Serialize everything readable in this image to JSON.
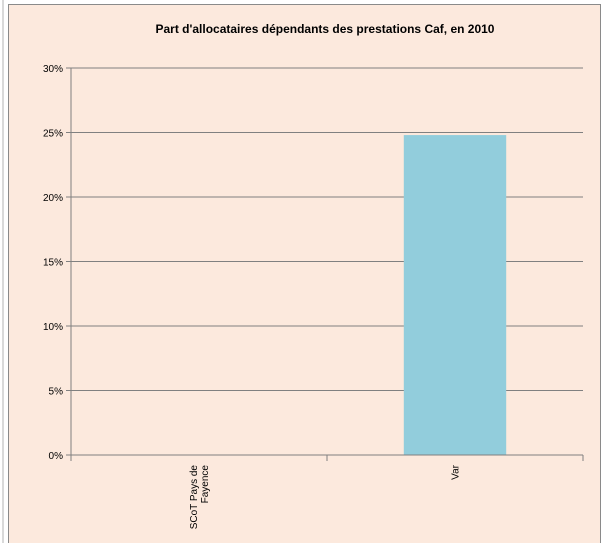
{
  "chart_data": {
    "type": "bar",
    "title": "Part d'allocataires dépendants des prestations Caf, en 2010",
    "categories": [
      "SCoT Pays de Fayence",
      "Var"
    ],
    "category_lines": [
      [
        "SCoT Pays de",
        "Fayence"
      ],
      [
        "Var"
      ]
    ],
    "values": [
      null,
      0.248
    ],
    "ylim": [
      0,
      0.3
    ],
    "y_ticks": [
      "0%",
      "5%",
      "10%",
      "15%",
      "20%",
      "25%",
      "30%"
    ],
    "y_tick_values": [
      0,
      0.05,
      0.1,
      0.15,
      0.2,
      0.25,
      0.3
    ],
    "grid": true,
    "legend": "none",
    "colors": {
      "bar": "#92cddc",
      "background": "#fce9dd",
      "grid": "#808080"
    }
  }
}
